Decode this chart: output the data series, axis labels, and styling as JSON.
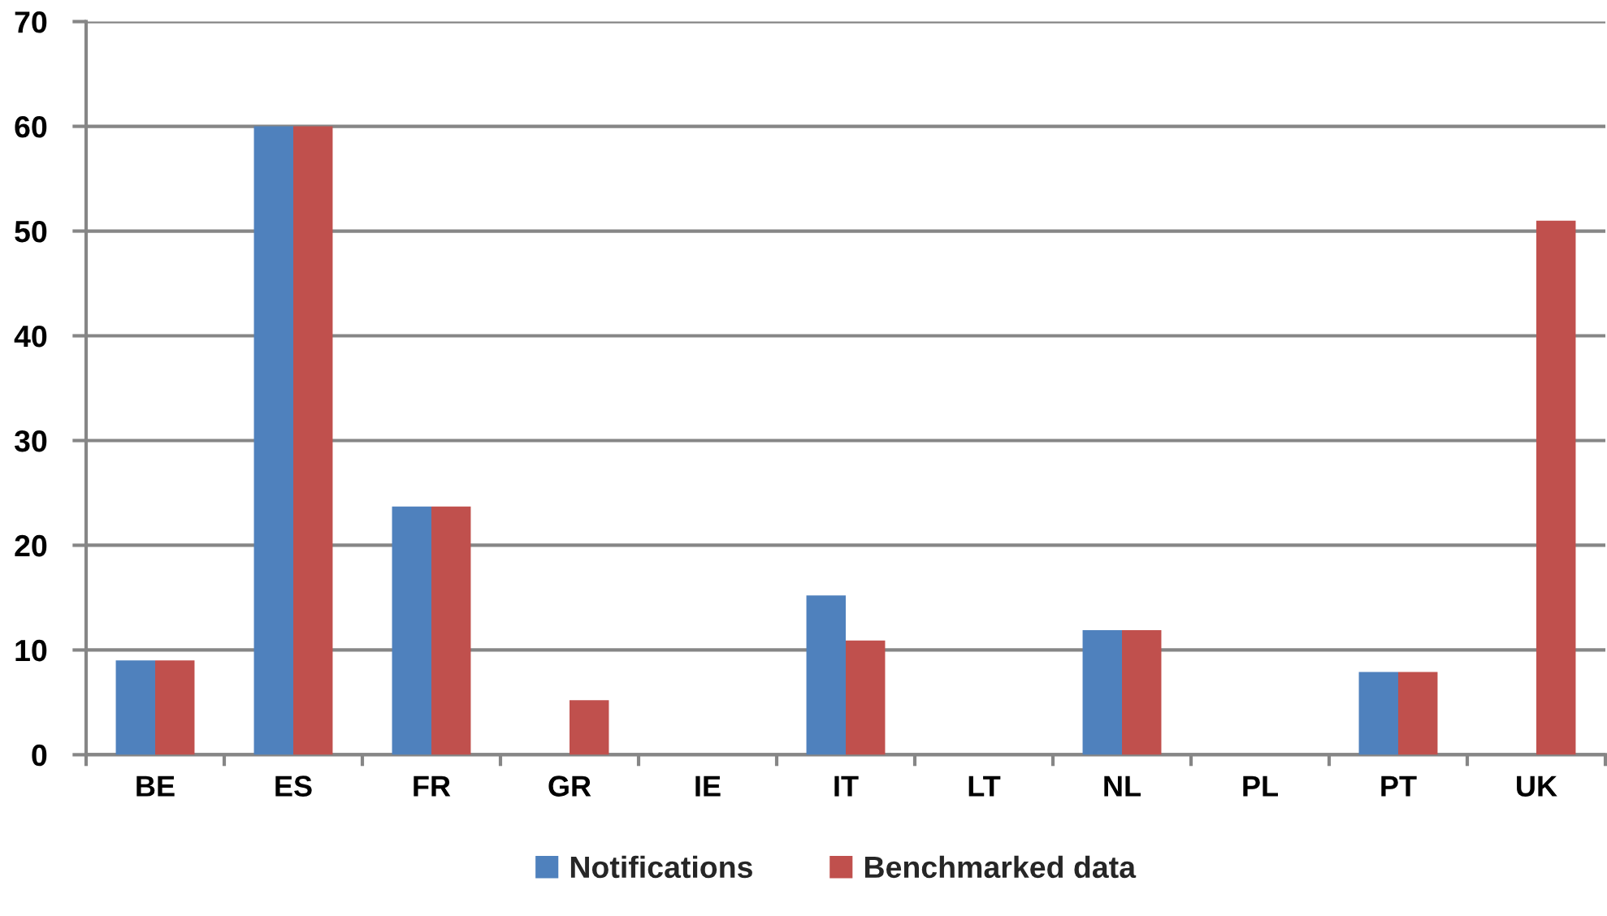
{
  "chart_data": {
    "type": "bar",
    "categories": [
      "BE",
      "ES",
      "FR",
      "GR",
      "IE",
      "IT",
      "LT",
      "NL",
      "PL",
      "PT",
      "UK"
    ],
    "series": [
      {
        "name": "Notifications",
        "color": "#4f81bd",
        "values": [
          9,
          60,
          23.7,
          null,
          null,
          15.2,
          null,
          11.9,
          null,
          7.9,
          null
        ]
      },
      {
        "name": "Benchmarked data",
        "color": "#c0504d",
        "values": [
          9,
          60,
          23.7,
          5.2,
          null,
          10.9,
          null,
          11.9,
          null,
          7.9,
          51
        ]
      }
    ],
    "ylim": [
      0,
      70
    ],
    "yticks": [
      0,
      10,
      20,
      30,
      40,
      50,
      60,
      70
    ],
    "grid": "y",
    "legend": "bottom"
  }
}
